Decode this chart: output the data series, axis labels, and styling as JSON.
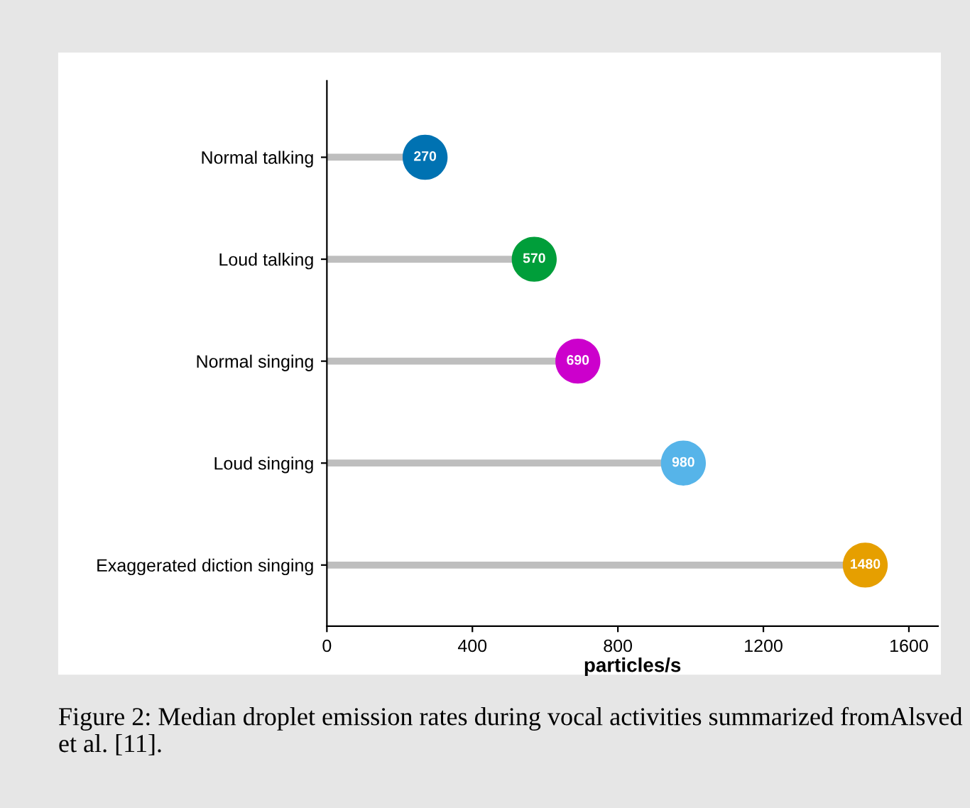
{
  "chart_data": {
    "type": "lollipop",
    "orientation": "horizontal",
    "categories": [
      "Normal talking",
      "Loud talking",
      "Normal singing",
      "Loud singing",
      "Exaggerated diction singing"
    ],
    "values": [
      270,
      570,
      690,
      980,
      1480
    ],
    "colors": [
      "#0072b2",
      "#009e3a",
      "#cc00cc",
      "#56b4e9",
      "#e69f00"
    ],
    "data_labels": true,
    "xlabel": "particles/s",
    "xlim": [
      0,
      1680
    ],
    "xticks": [
      0,
      400,
      800,
      1200,
      1600
    ],
    "grid": false,
    "annotations": [
      "Figure 2: Median droplet emission rates during vocal activities summarized fromAlsved et al. [11]."
    ]
  }
}
